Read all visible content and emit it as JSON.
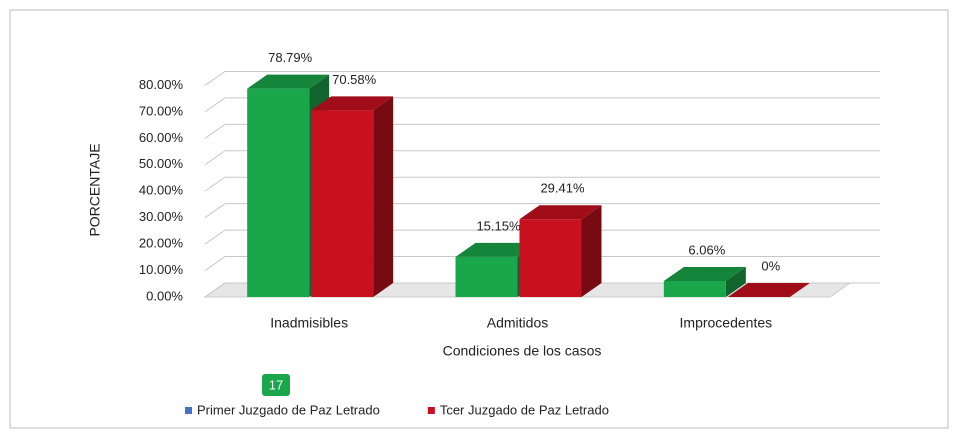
{
  "chart_data": {
    "type": "bar3d",
    "y_label": "PORCENTAJE",
    "x_label": "Condiciones de los casos",
    "categories": [
      "Inadmisibles",
      "Admitidos",
      "Improcedentes"
    ],
    "series": [
      {
        "name": "Primer Juzgado de Paz Letrado",
        "color": "#1aa64a",
        "values": [
          78.79,
          15.15,
          6.06
        ],
        "value_labels": [
          "78.79%",
          "15.15%",
          "6.06%"
        ]
      },
      {
        "name": "Tcer Juzgado de Paz Letrado",
        "color": "#c8101e",
        "values": [
          70.58,
          29.41,
          0
        ],
        "value_labels": [
          "70.58%",
          "29.41%",
          "0%"
        ]
      }
    ],
    "ylim": [
      0,
      90
    ],
    "yticks": [
      {
        "value": 0,
        "label": "0.00%"
      },
      {
        "value": 10,
        "label": "10.00%"
      },
      {
        "value": 20,
        "label": "20.00%"
      },
      {
        "value": 30,
        "label": "30.00%"
      },
      {
        "value": 40,
        "label": "40.00%"
      },
      {
        "value": 50,
        "label": "50.00%"
      },
      {
        "value": 60,
        "label": "60.00%"
      },
      {
        "value": 70,
        "label": "70.00%"
      },
      {
        "value": 80,
        "label": "80.00%"
      }
    ],
    "grid": true,
    "legend": "bottom",
    "badge": "17"
  }
}
